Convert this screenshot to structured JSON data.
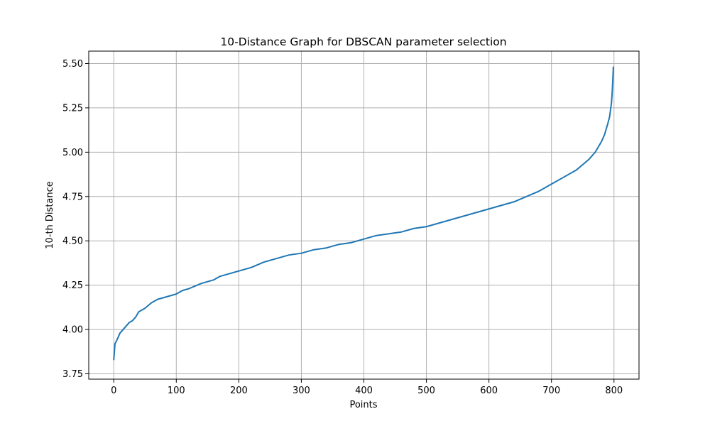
{
  "chart_data": {
    "type": "line",
    "title": "10-Distance Graph for DBSCAN parameter selection",
    "xlabel": "Points",
    "ylabel": "10-th Distance",
    "xlim": [
      -40,
      840
    ],
    "ylim": [
      3.72,
      5.57
    ],
    "xticks": [
      0,
      100,
      200,
      300,
      400,
      500,
      600,
      700,
      800
    ],
    "xtick_labels": [
      "0",
      "100",
      "200",
      "300",
      "400",
      "500",
      "600",
      "700",
      "800"
    ],
    "yticks": [
      3.75,
      4.0,
      4.25,
      4.5,
      4.75,
      5.0,
      5.25,
      5.5
    ],
    "ytick_labels": [
      "3.75",
      "4.00",
      "4.25",
      "4.50",
      "4.75",
      "5.00",
      "5.25",
      "5.50"
    ],
    "grid": true,
    "legend": "none",
    "series": [
      {
        "color": "#1f77b4",
        "x": [
          0,
          2,
          5,
          10,
          15,
          20,
          25,
          30,
          35,
          40,
          50,
          60,
          70,
          80,
          90,
          100,
          110,
          120,
          140,
          160,
          170,
          180,
          200,
          220,
          240,
          260,
          280,
          300,
          320,
          340,
          360,
          380,
          400,
          420,
          440,
          460,
          480,
          500,
          520,
          540,
          560,
          580,
          600,
          620,
          640,
          660,
          680,
          700,
          720,
          740,
          750,
          760,
          770,
          780,
          785,
          790,
          793,
          796,
          797,
          798,
          799
        ],
        "y": [
          3.83,
          3.92,
          3.94,
          3.98,
          4.0,
          4.02,
          4.04,
          4.05,
          4.07,
          4.1,
          4.12,
          4.15,
          4.17,
          4.18,
          4.19,
          4.2,
          4.22,
          4.23,
          4.26,
          4.28,
          4.3,
          4.31,
          4.33,
          4.35,
          4.38,
          4.4,
          4.42,
          4.43,
          4.45,
          4.46,
          4.48,
          4.49,
          4.51,
          4.53,
          4.54,
          4.55,
          4.57,
          4.58,
          4.6,
          4.62,
          4.64,
          4.66,
          4.68,
          4.7,
          4.72,
          4.75,
          4.78,
          4.82,
          4.86,
          4.9,
          4.93,
          4.96,
          5.0,
          5.06,
          5.1,
          5.16,
          5.2,
          5.28,
          5.33,
          5.4,
          5.48
        ]
      }
    ]
  }
}
